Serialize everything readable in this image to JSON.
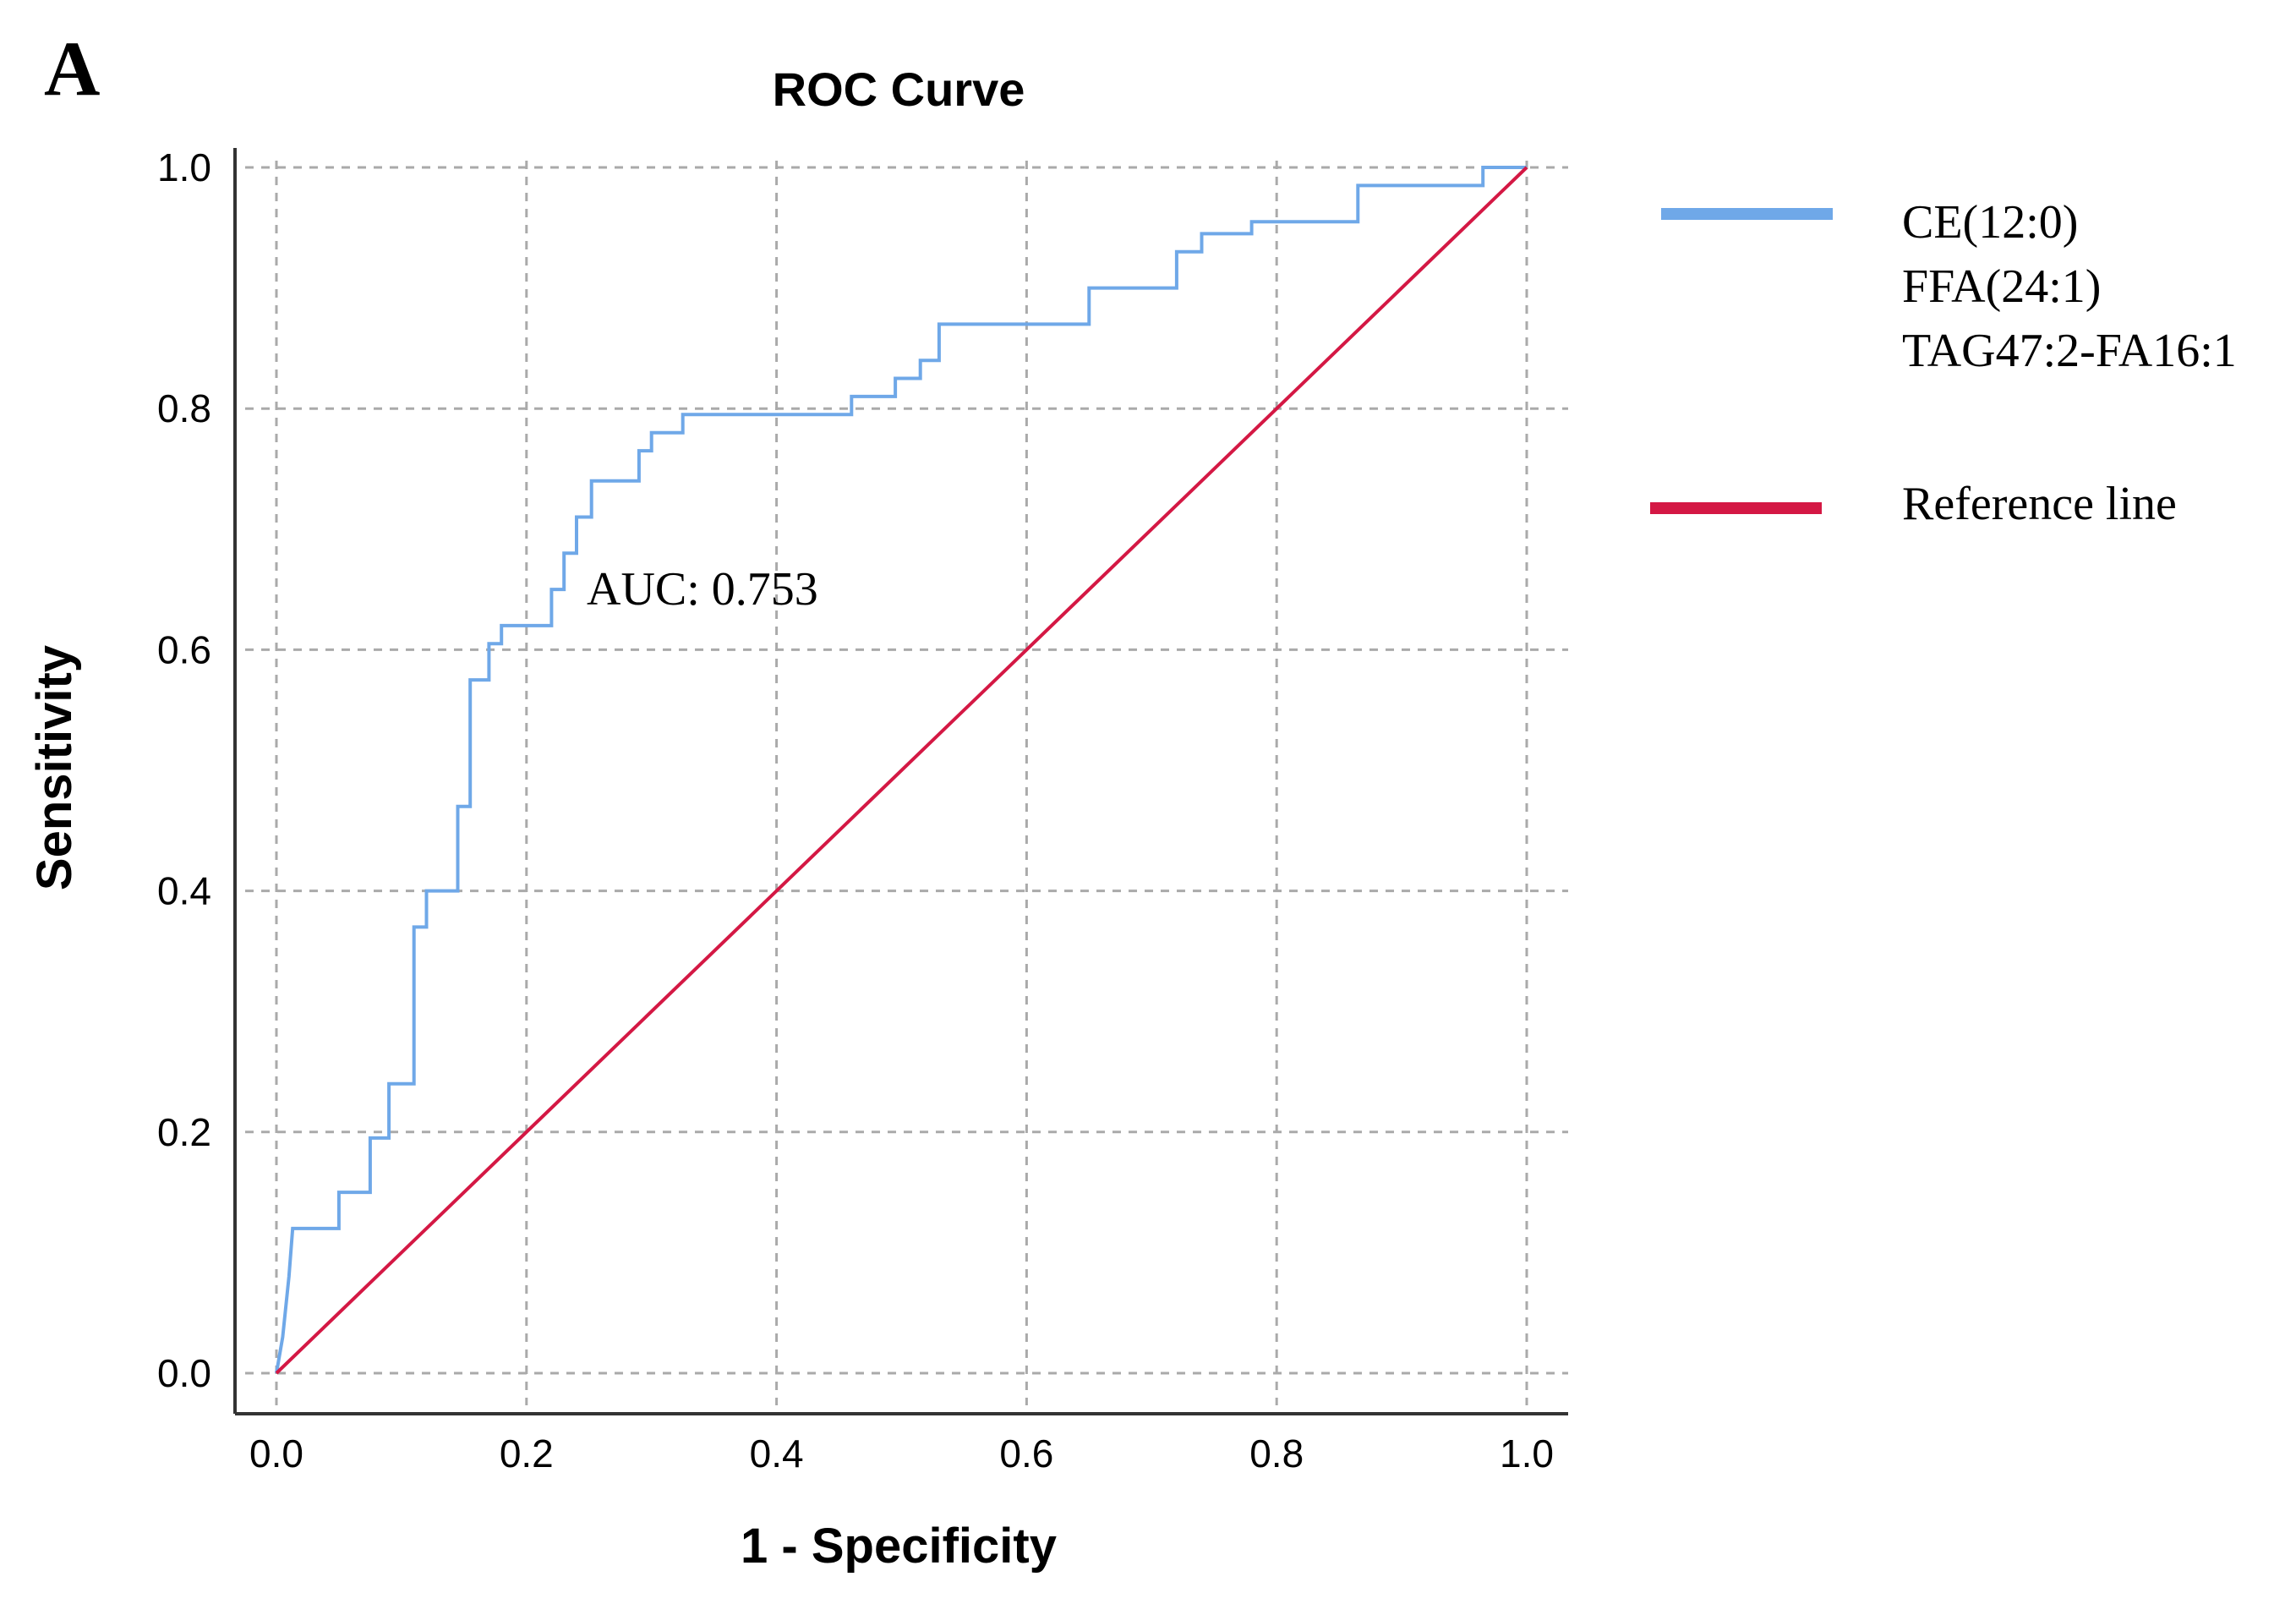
{
  "panel_label": "A",
  "chart_data": {
    "type": "line",
    "title": "ROC Curve",
    "xlabel": "1 - Specificity",
    "ylabel": "Sensitivity",
    "xlim": [
      0,
      1
    ],
    "ylim": [
      0,
      1
    ],
    "x_ticks": [
      "0.0",
      "0.2",
      "0.4",
      "0.6",
      "0.8",
      "1.0"
    ],
    "y_ticks": [
      "0.0",
      "0.2",
      "0.4",
      "0.6",
      "0.8",
      "1.0"
    ],
    "grid": true,
    "legend_position": "right",
    "annotation": "AUC: 0.753",
    "series": [
      {
        "legend_lines": [
          "CE(12:0)",
          "FFA(24:1)",
          "TAG47:2-FA16:1"
        ],
        "color": "#6fa8e8",
        "x": [
          0,
          0.005,
          0.01,
          0.013,
          0.013,
          0.05,
          0.05,
          0.075,
          0.075,
          0.09,
          0.09,
          0.11,
          0.11,
          0.12,
          0.12,
          0.145,
          0.145,
          0.155,
          0.155,
          0.17,
          0.17,
          0.18,
          0.18,
          0.22,
          0.22,
          0.23,
          0.23,
          0.24,
          0.24,
          0.252,
          0.252,
          0.29,
          0.29,
          0.3,
          0.3,
          0.325,
          0.325,
          0.46,
          0.46,
          0.495,
          0.495,
          0.515,
          0.515,
          0.53,
          0.53,
          0.65,
          0.65,
          0.72,
          0.72,
          0.74,
          0.74,
          0.78,
          0.78,
          0.865,
          0.865,
          0.965,
          0.965,
          1.0
        ],
        "y": [
          0,
          0.03,
          0.08,
          0.12,
          0.12,
          0.12,
          0.15,
          0.15,
          0.195,
          0.195,
          0.24,
          0.24,
          0.37,
          0.37,
          0.4,
          0.4,
          0.47,
          0.47,
          0.575,
          0.575,
          0.605,
          0.605,
          0.62,
          0.62,
          0.65,
          0.65,
          0.68,
          0.68,
          0.71,
          0.71,
          0.74,
          0.74,
          0.765,
          0.765,
          0.78,
          0.78,
          0.795,
          0.795,
          0.81,
          0.81,
          0.825,
          0.825,
          0.84,
          0.84,
          0.87,
          0.87,
          0.9,
          0.9,
          0.93,
          0.93,
          0.945,
          0.945,
          0.955,
          0.955,
          0.985,
          0.985,
          1.0,
          1.0
        ]
      },
      {
        "name": "Reference line",
        "color": "#d41844",
        "x": [
          0,
          1
        ],
        "y": [
          0,
          1
        ]
      }
    ]
  }
}
